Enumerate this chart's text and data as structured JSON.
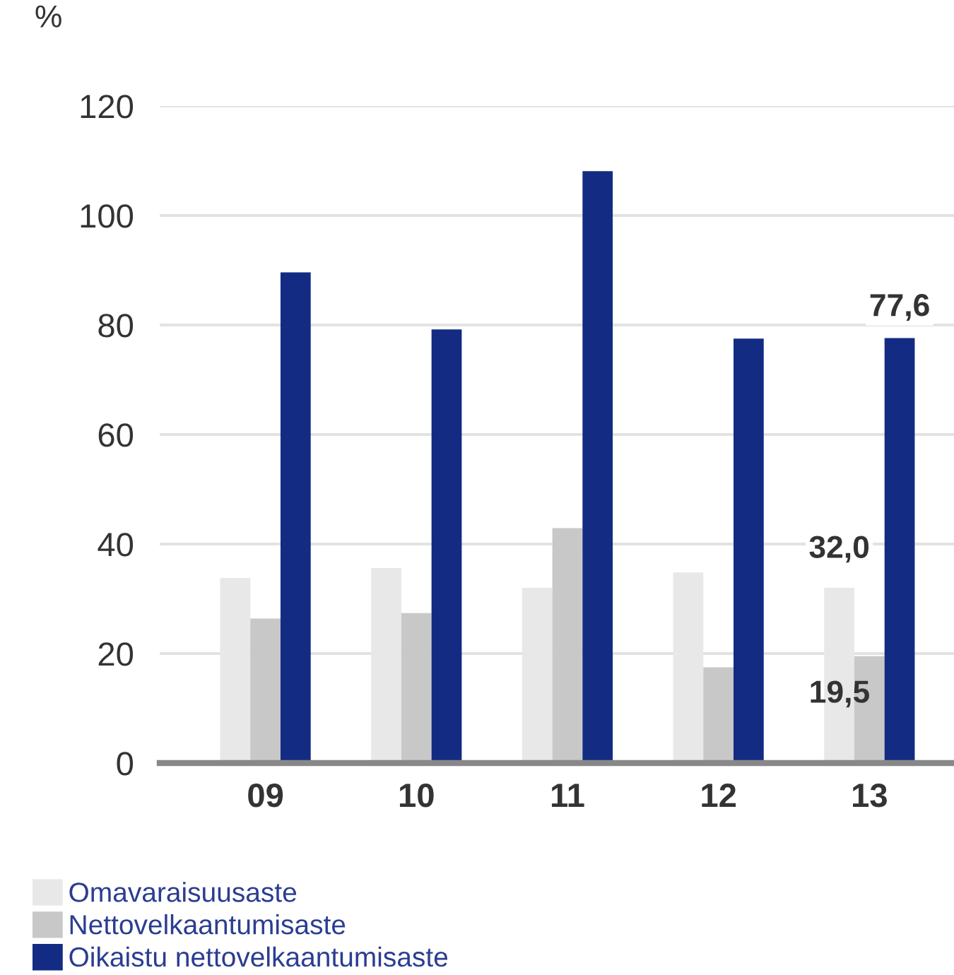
{
  "chart_data": {
    "type": "bar",
    "ylabel": "%",
    "categories": [
      "09",
      "10",
      "11",
      "12",
      "13"
    ],
    "series": [
      {
        "name": "Omavaraisuusaste",
        "color": "#e8e8e8",
        "values": [
          33.8,
          35.6,
          32.0,
          34.8,
          32.0
        ],
        "value_labels": [
          null,
          null,
          null,
          null,
          "32,0"
        ]
      },
      {
        "name": "Nettovelkaantumisaste",
        "color": "#c8c8c8",
        "values": [
          26.4,
          27.4,
          42.9,
          17.5,
          19.5
        ],
        "value_labels": [
          null,
          null,
          null,
          null,
          "19,5"
        ]
      },
      {
        "name": "Oikaistu nettovelkaantumisaste",
        "color": "#132b82",
        "values": [
          89.6,
          79.2,
          108.1,
          77.5,
          77.6
        ],
        "value_labels": [
          null,
          null,
          null,
          null,
          "77,6"
        ]
      }
    ],
    "ylim": [
      0,
      120
    ],
    "yticks": [
      0,
      20,
      40,
      60,
      80,
      100,
      120
    ],
    "grid": "y",
    "legend": "bottom"
  }
}
